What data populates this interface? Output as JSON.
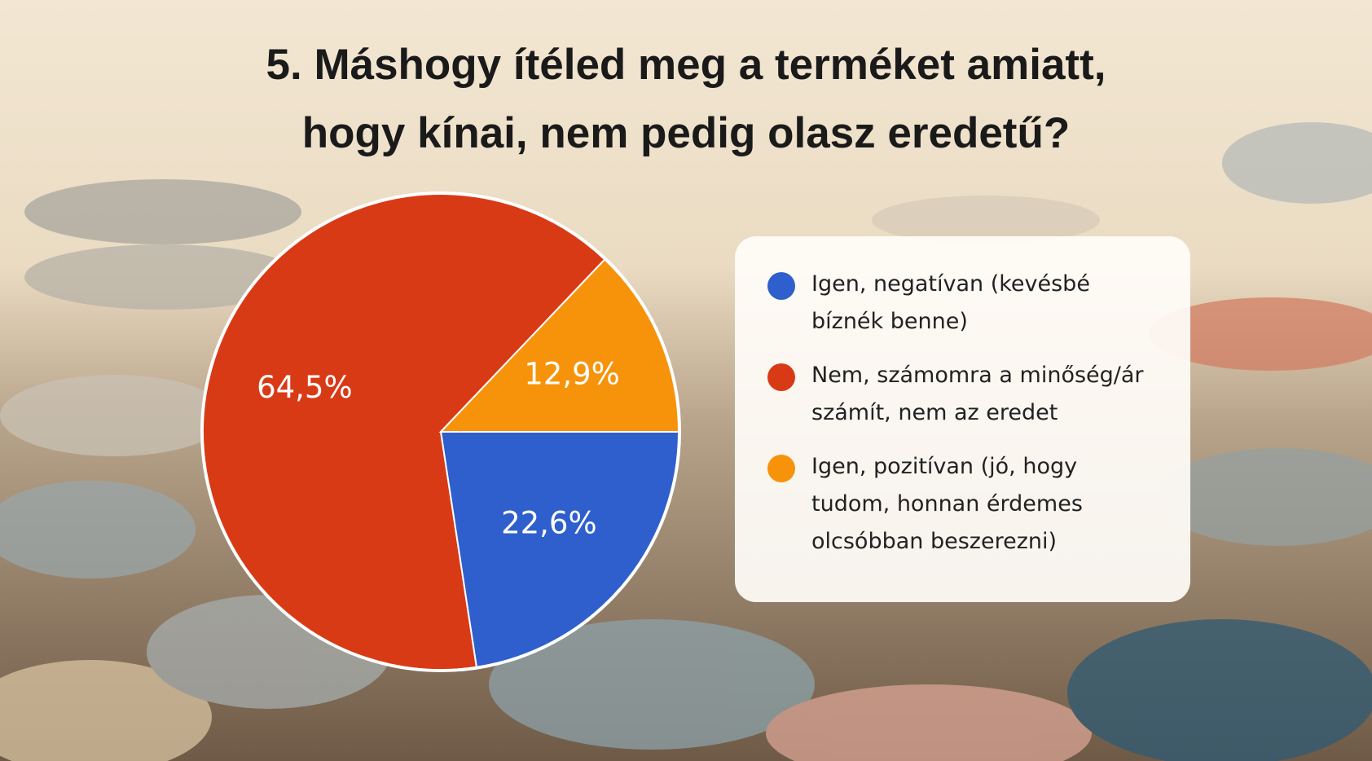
{
  "chart_data": {
    "type": "pie",
    "title": "5. Máshogy ítéled meg a terméket amiatt, hogy kínai, nem pedig olasz eredetű?",
    "categories": [
      "Igen, negatívan (kevésbé bíznék benne)",
      "Nem, számomra a minőség/ár számít, nem az eredet",
      "Igen, pozitívan (jó, hogy tudom, honnan érdemes olcsóbban beszerezni)"
    ],
    "values": [
      22.6,
      64.5,
      12.9
    ],
    "value_labels": [
      "22,6%",
      "64,5%",
      "12,9%"
    ],
    "colors": [
      "#2f5fcc",
      "#d93a16",
      "#f7930a"
    ],
    "legend": "right"
  }
}
